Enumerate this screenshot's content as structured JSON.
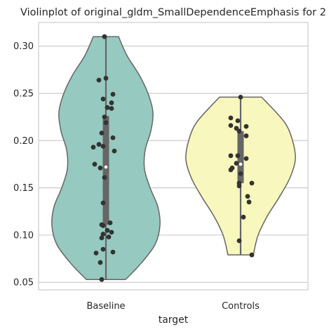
{
  "chart_data": {
    "type": "violin",
    "title": "Violinplot of original_gldm_SmallDependenceEmphasis for 2",
    "xlabel": "target",
    "ylabel": "",
    "categories": [
      "Baseline",
      "Controls"
    ],
    "ylim": [
      0.042,
      0.325
    ],
    "yticks": [
      "0.05",
      "0.10",
      "0.15",
      "0.20",
      "0.25",
      "0.30"
    ],
    "grid": "horizontal",
    "colors": {
      "Baseline": "#96c9bf",
      "Controls": "#f8f7bd",
      "outline": "#666666",
      "points": "#333333",
      "box": "#666666",
      "grid": "#cccccc"
    },
    "groups": [
      {
        "name": "Baseline",
        "median": 0.172,
        "q1": 0.111,
        "q3": 0.226,
        "whisker_low": 0.053,
        "whisker_high": 0.31,
        "profile": [
          [
            0.053,
            28
          ],
          [
            0.07,
            50
          ],
          [
            0.09,
            70
          ],
          [
            0.11,
            77
          ],
          [
            0.13,
            74
          ],
          [
            0.15,
            63
          ],
          [
            0.17,
            55
          ],
          [
            0.19,
            56
          ],
          [
            0.21,
            64
          ],
          [
            0.23,
            67
          ],
          [
            0.25,
            60
          ],
          [
            0.27,
            47
          ],
          [
            0.29,
            30
          ],
          [
            0.31,
            18
          ]
        ],
        "points": [
          [
            -2,
            0.31
          ],
          [
            0,
            0.266
          ],
          [
            -10,
            0.264
          ],
          [
            10,
            0.249
          ],
          [
            -4,
            0.244
          ],
          [
            8,
            0.24
          ],
          [
            2,
            0.235
          ],
          [
            8,
            0.234
          ],
          [
            -2,
            0.225
          ],
          [
            0,
            0.219
          ],
          [
            -6,
            0.208
          ],
          [
            10,
            0.203
          ],
          [
            -10,
            0.196
          ],
          [
            -4,
            0.194
          ],
          [
            -18,
            0.193
          ],
          [
            12,
            0.189
          ],
          [
            -16,
            0.175
          ],
          [
            -8,
            0.171
          ],
          [
            -2,
            0.161
          ],
          [
            -4,
            0.134
          ],
          [
            6,
            0.113
          ],
          [
            -6,
            0.111
          ],
          [
            -4,
            0.11
          ],
          [
            2,
            0.105
          ],
          [
            8,
            0.103
          ],
          [
            -4,
            0.101
          ],
          [
            4,
            0.098
          ],
          [
            -6,
            0.097
          ],
          [
            -4,
            0.085
          ],
          [
            -14,
            0.081
          ],
          [
            10,
            0.082
          ],
          [
            -8,
            0.071
          ],
          [
            -6,
            0.053
          ]
        ]
      },
      {
        "name": "Controls",
        "median": 0.175,
        "q1": 0.155,
        "q3": 0.21,
        "whisker_low": 0.079,
        "whisker_high": 0.246,
        "profile": [
          [
            0.079,
            18
          ],
          [
            0.1,
            25
          ],
          [
            0.12,
            38
          ],
          [
            0.14,
            55
          ],
          [
            0.16,
            70
          ],
          [
            0.18,
            78
          ],
          [
            0.2,
            74
          ],
          [
            0.22,
            62
          ],
          [
            0.246,
            30
          ]
        ],
        "points": [
          [
            0,
            0.246
          ],
          [
            -14,
            0.224
          ],
          [
            -4,
            0.221
          ],
          [
            -14,
            0.216
          ],
          [
            8,
            0.215
          ],
          [
            -6,
            0.213
          ],
          [
            -2,
            0.21
          ],
          [
            8,
            0.205
          ],
          [
            -14,
            0.184
          ],
          [
            -4,
            0.184
          ],
          [
            8,
            0.181
          ],
          [
            -6,
            0.176
          ],
          [
            -12,
            0.171
          ],
          [
            -14,
            0.169
          ],
          [
            0,
            0.165
          ],
          [
            -2,
            0.155
          ],
          [
            16,
            0.155
          ],
          [
            -2,
            0.152
          ],
          [
            10,
            0.141
          ],
          [
            12,
            0.135
          ],
          [
            4,
            0.119
          ],
          [
            -2,
            0.094
          ],
          [
            16,
            0.079
          ]
        ]
      }
    ]
  }
}
